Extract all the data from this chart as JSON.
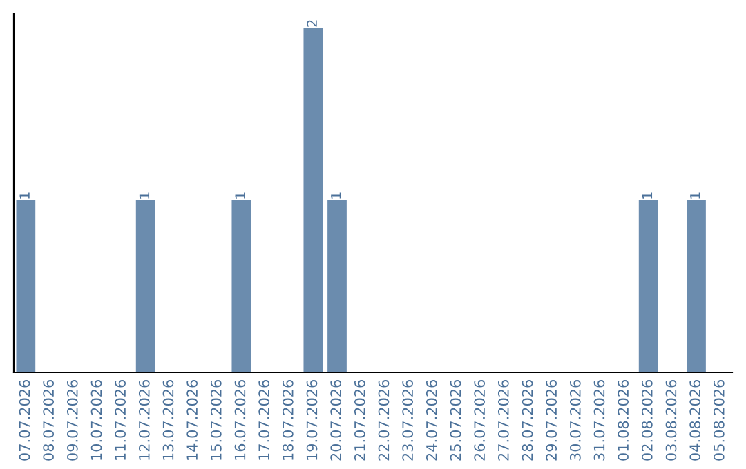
{
  "chart_data": {
    "type": "bar",
    "categories": [
      "07.07.2026",
      "08.07.2026",
      "09.07.2026",
      "10.07.2026",
      "11.07.2026",
      "12.07.2026",
      "13.07.2026",
      "14.07.2026",
      "15.07.2026",
      "16.07.2026",
      "17.07.2026",
      "18.07.2026",
      "19.07.2026",
      "20.07.2026",
      "21.07.2026",
      "22.07.2026",
      "23.07.2026",
      "24.07.2026",
      "25.07.2026",
      "26.07.2026",
      "27.07.2026",
      "28.07.2026",
      "29.07.2026",
      "30.07.2026",
      "31.07.2026",
      "01.08.2026",
      "02.08.2026",
      "03.08.2026",
      "04.08.2026",
      "05.08.2026"
    ],
    "values": [
      1,
      0,
      0,
      0,
      0,
      1,
      0,
      0,
      0,
      1,
      0,
      0,
      2,
      1,
      0,
      0,
      0,
      0,
      0,
      0,
      0,
      0,
      0,
      0,
      0,
      0,
      1,
      0,
      1,
      0
    ],
    "color": "#6b8cae",
    "value_labels": [
      "1",
      null,
      null,
      null,
      null,
      "1",
      null,
      null,
      null,
      "1",
      null,
      null,
      "2",
      "1",
      null,
      null,
      null,
      null,
      null,
      null,
      null,
      null,
      null,
      null,
      null,
      null,
      "1",
      null,
      "1",
      null
    ],
    "grid": false,
    "legend": false,
    "tick_labels": "x"
  }
}
